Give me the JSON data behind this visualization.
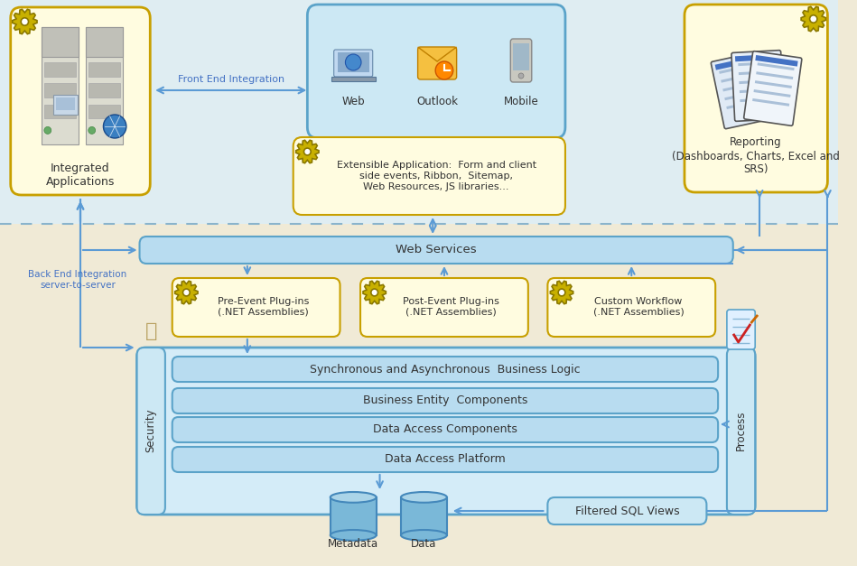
{
  "bg_color": "#f0ead6",
  "top_band_color": "#ddeef8",
  "dashed_line_color": "#8ab4cc",
  "box_yellow_fill": "#fffce0",
  "box_yellow_border": "#c8a000",
  "box_blue_fill": "#cce8f4",
  "box_blue_border": "#5ba3c9",
  "bar_fill": "#b8dcf0",
  "bar_stroke": "#5ba3c9",
  "outer_box_fill": "#d4ecf8",
  "outer_box_stroke": "#5ba3c9",
  "arrow_color": "#5b9bd5",
  "label_blue": "#4472c4",
  "gear_fill": "#c8b000",
  "gear_stroke": "#8a7800",
  "server_fill": "#e8e8e0",
  "server_stroke": "#aaaaaa",
  "db_fill": "#6baed6",
  "db_top": "#9ecae1",
  "db_stroke": "#2171b5",
  "filtered_fill": "#cce8f4",
  "filtered_stroke": "#5ba3c9",
  "front_end_label": "Front End Integration",
  "back_end_label": "Back End Integration\nserver-to-server",
  "integrated_apps_label": "Integrated\nApplications",
  "reporting_label": "Reporting\n(Dashboards, Charts, Excel and\nSRS)",
  "web_label": "Web",
  "outlook_label": "Outlook",
  "mobile_label": "Mobile",
  "extensible_label": "Extensible Application:  Form and client\nside events, Ribbon,  Sitemap,\nWeb Resources, JS libraries...",
  "web_services_label": "Web Services",
  "pre_event_label": "Pre-Event Plug-ins\n(.NET Assemblies)",
  "post_event_label": "Post-Event Plug-ins\n(.NET Assemblies)",
  "custom_workflow_label": "Custom Workflow\n(.NET Assemblies)",
  "sync_logic_label": "Synchronous and Asynchronous  Business Logic",
  "business_entity_label": "Business Entity  Components",
  "data_access_comp_label": "Data Access Components",
  "data_access_platform_label": "Data Access Platform",
  "security_label": "Security",
  "process_label": "Process",
  "metadata_label": "Metadata",
  "data_label": "Data",
  "filtered_sql_label": "Filtered SQL Views"
}
